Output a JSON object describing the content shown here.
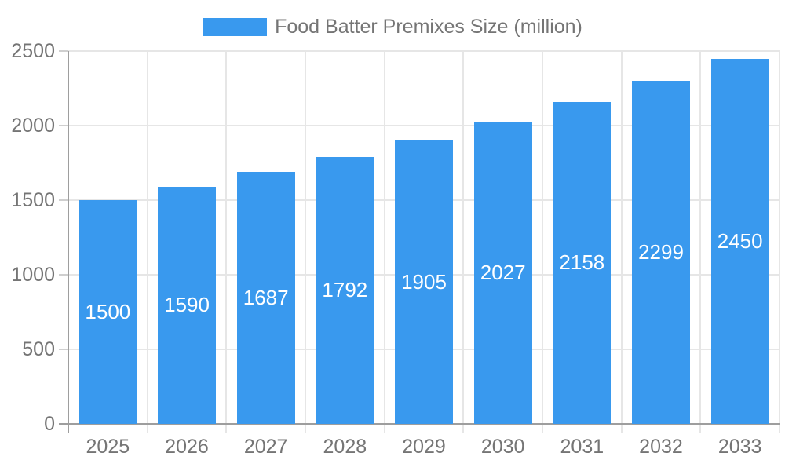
{
  "chart_data": {
    "type": "bar",
    "legend_label": "Food Batter Premixes Size (million)",
    "series_name": "Food Batter Premixes Size (million)",
    "categories": [
      "2025",
      "2026",
      "2027",
      "2028",
      "2029",
      "2030",
      "2031",
      "2032",
      "2033"
    ],
    "values": [
      1500,
      1590,
      1687,
      1792,
      1905,
      2027,
      2158,
      2299,
      2450
    ],
    "xlabel": "",
    "ylabel": "",
    "ylim": [
      0,
      2500
    ],
    "yticks": [
      0,
      500,
      1000,
      1500,
      2000,
      2500
    ],
    "grid": true,
    "legend_position": "top-center",
    "value_label_position": "inside-center",
    "colors": {
      "bar": "#3999ee",
      "grid": "#e6e6e6",
      "tick": "#cfcfcf",
      "axis": "#9e9e9e",
      "tick_text": "#757575",
      "value_text": "#ffffff",
      "background": "#ffffff"
    }
  }
}
